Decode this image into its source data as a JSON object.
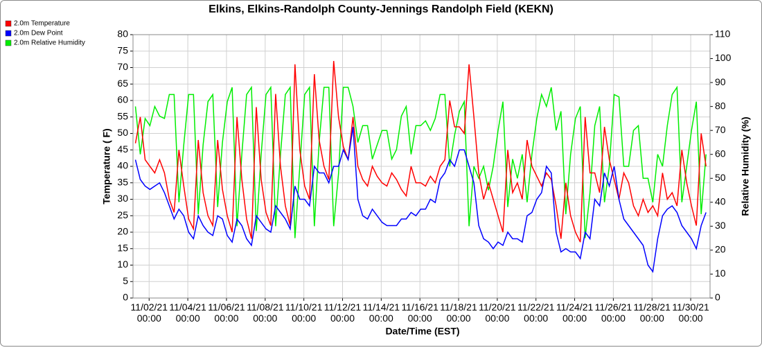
{
  "chart_data": {
    "type": "line",
    "title": "Elkins, Elkins-Randolph County-Jennings Randolph Field (KEKN)",
    "x_label": "Date/Time (EST)",
    "y_label": "Temperature ( F)",
    "y2_label": "Relative Humidity (%)",
    "x": [
      "11/01/21 07:00",
      "11/01/21 13:00",
      "11/01/21 19:00",
      "11/02/21 01:00",
      "11/02/21 07:00",
      "11/02/21 13:00",
      "11/02/21 19:00",
      "11/03/21 01:00",
      "11/03/21 07:00",
      "11/03/21 13:00",
      "11/03/21 19:00",
      "11/04/21 01:00",
      "11/04/21 07:00",
      "11/04/21 13:00",
      "11/04/21 19:00",
      "11/05/21 01:00",
      "11/05/21 07:00",
      "11/05/21 13:00",
      "11/05/21 19:00",
      "11/06/21 01:00",
      "11/06/21 07:00",
      "11/06/21 13:00",
      "11/06/21 19:00",
      "11/07/21 01:00",
      "11/07/21 07:00",
      "11/07/21 13:00",
      "11/07/21 19:00",
      "11/08/21 01:00",
      "11/08/21 07:00",
      "11/08/21 13:00",
      "11/08/21 19:00",
      "11/09/21 01:00",
      "11/09/21 07:00",
      "11/09/21 13:00",
      "11/09/21 19:00",
      "11/10/21 01:00",
      "11/10/21 07:00",
      "11/10/21 13:00",
      "11/10/21 19:00",
      "11/11/21 01:00",
      "11/11/21 07:00",
      "11/11/21 13:00",
      "11/11/21 19:00",
      "11/12/21 01:00",
      "11/12/21 07:00",
      "11/12/21 13:00",
      "11/12/21 19:00",
      "11/13/21 01:00",
      "11/13/21 07:00",
      "11/13/21 13:00",
      "11/13/21 19:00",
      "11/14/21 01:00",
      "11/14/21 07:00",
      "11/14/21 13:00",
      "11/14/21 19:00",
      "11/15/21 01:00",
      "11/15/21 07:00",
      "11/15/21 13:00",
      "11/15/21 19:00",
      "11/16/21 01:00",
      "11/16/21 07:00",
      "11/16/21 13:00",
      "11/16/21 19:00",
      "11/17/21 01:00",
      "11/17/21 07:00",
      "11/17/21 13:00",
      "11/17/21 19:00",
      "11/18/21 01:00",
      "11/18/21 07:00",
      "11/18/21 13:00",
      "11/18/21 19:00",
      "11/19/21 01:00",
      "11/19/21 07:00",
      "11/19/21 13:00",
      "11/19/21 19:00",
      "11/20/21 01:00",
      "11/20/21 07:00",
      "11/20/21 13:00",
      "11/20/21 19:00",
      "11/21/21 01:00",
      "11/21/21 07:00",
      "11/21/21 13:00",
      "11/21/21 19:00",
      "11/22/21 01:00",
      "11/22/21 07:00",
      "11/22/21 13:00",
      "11/22/21 19:00",
      "11/23/21 01:00",
      "11/23/21 07:00",
      "11/23/21 13:00",
      "11/23/21 19:00",
      "11/24/21 01:00",
      "11/24/21 07:00",
      "11/24/21 13:00",
      "11/24/21 19:00",
      "11/25/21 01:00",
      "11/25/21 07:00",
      "11/25/21 13:00",
      "11/25/21 19:00",
      "11/26/21 01:00",
      "11/26/21 07:00",
      "11/26/21 13:00",
      "11/26/21 19:00",
      "11/27/21 01:00",
      "11/27/21 07:00",
      "11/27/21 13:00",
      "11/27/21 19:00",
      "11/28/21 01:00",
      "11/28/21 07:00",
      "11/28/21 13:00",
      "11/28/21 19:00",
      "11/29/21 01:00",
      "11/29/21 07:00",
      "11/29/21 13:00",
      "11/29/21 19:00",
      "11/30/21 01:00",
      "11/30/21 07:00",
      "11/30/21 13:00",
      "11/30/21 19:00"
    ],
    "series": [
      {
        "name": "2.0m Temperature",
        "color": "#ff0000",
        "axis": "y",
        "values": [
          47,
          55,
          42,
          40,
          38,
          42,
          38,
          30,
          26,
          45,
          34,
          24,
          21,
          48,
          32,
          25,
          22,
          48,
          33,
          25,
          20,
          55,
          36,
          24,
          18,
          58,
          36,
          26,
          22,
          62,
          40,
          28,
          22,
          71,
          45,
          34,
          30,
          68,
          48,
          40,
          36,
          72,
          55,
          46,
          42,
          55,
          40,
          36,
          34,
          40,
          37,
          35,
          34,
          38,
          36,
          33,
          31,
          40,
          35,
          35,
          34,
          37,
          35,
          40,
          42,
          60,
          52,
          52,
          50,
          71,
          55,
          38,
          30,
          35,
          30,
          25,
          20,
          45,
          32,
          35,
          30,
          48,
          40,
          37,
          34,
          38,
          36,
          28,
          18,
          35,
          25,
          20,
          17,
          55,
          38,
          38,
          32,
          52,
          42,
          36,
          30,
          38,
          35,
          28,
          25,
          30,
          26,
          28,
          25,
          38,
          30,
          32,
          28,
          45,
          35,
          28,
          22,
          50,
          40
        ]
      },
      {
        "name": "2.0m Dew Point",
        "color": "#0000ff",
        "axis": "y",
        "values": [
          42,
          36,
          34,
          33,
          34,
          35,
          32,
          28,
          24,
          27,
          25,
          20,
          18,
          25,
          22,
          20,
          19,
          25,
          24,
          19,
          17,
          24,
          22,
          18,
          16,
          25,
          23,
          21,
          20,
          28,
          26,
          24,
          21,
          34,
          30,
          30,
          28,
          40,
          38,
          38,
          35,
          40,
          40,
          45,
          42,
          52,
          30,
          25,
          24,
          27,
          25,
          23,
          22,
          22,
          22,
          24,
          24,
          26,
          25,
          27,
          27,
          30,
          29,
          36,
          38,
          42,
          40,
          45,
          45,
          40,
          35,
          22,
          18,
          17,
          15,
          17,
          16,
          20,
          18,
          18,
          17,
          25,
          26,
          30,
          32,
          40,
          38,
          20,
          14,
          15,
          14,
          14,
          12,
          20,
          18,
          30,
          28,
          38,
          34,
          40,
          30,
          24,
          22,
          20,
          18,
          16,
          10,
          8,
          18,
          25,
          27,
          28,
          26,
          22,
          20,
          18,
          15,
          22,
          26
        ]
      },
      {
        "name": "2.0m Relative Humidity",
        "color": "#00ee00",
        "axis": "y2",
        "values": [
          80,
          60,
          75,
          72,
          80,
          76,
          75,
          85,
          85,
          40,
          64,
          85,
          85,
          35,
          64,
          82,
          85,
          38,
          65,
          82,
          88,
          30,
          60,
          85,
          88,
          28,
          60,
          85,
          88,
          30,
          60,
          85,
          88,
          25,
          55,
          85,
          88,
          30,
          65,
          88,
          88,
          30,
          52,
          88,
          88,
          80,
          65,
          72,
          72,
          58,
          64,
          70,
          70,
          58,
          62,
          76,
          80,
          60,
          72,
          72,
          74,
          70,
          75,
          85,
          85,
          55,
          68,
          78,
          82,
          30,
          55,
          50,
          55,
          45,
          55,
          70,
          82,
          38,
          58,
          50,
          60,
          40,
          60,
          75,
          85,
          80,
          88,
          70,
          78,
          35,
          60,
          75,
          80,
          25,
          44,
          72,
          80,
          40,
          55,
          85,
          84,
          55,
          55,
          70,
          72,
          50,
          50,
          40,
          60,
          55,
          72,
          85,
          88,
          40,
          55,
          70,
          82,
          35,
          60
        ]
      }
    ],
    "xlim": [
      "11/01/21 04:00",
      "12/01/21 00:00"
    ],
    "xticks": [
      "11/02/21 00:00",
      "11/04/21 00:00",
      "11/06/21 00:00",
      "11/08/21 00:00",
      "11/10/21 00:00",
      "11/12/21 00:00",
      "11/14/21 00:00",
      "11/16/21 00:00",
      "11/18/21 00:00",
      "11/20/21 00:00",
      "11/22/21 00:00",
      "11/24/21 00:00",
      "11/26/21 00:00",
      "11/28/21 00:00",
      "11/30/21 00:00"
    ],
    "ylim": [
      0,
      80
    ],
    "yticks": [
      0,
      5,
      10,
      15,
      20,
      25,
      30,
      35,
      40,
      45,
      50,
      55,
      60,
      65,
      70,
      75,
      80
    ],
    "y2lim": [
      0,
      110
    ],
    "y2ticks": [
      0,
      10,
      20,
      30,
      40,
      50,
      60,
      70,
      80,
      90,
      100,
      110
    ],
    "grid": true,
    "legend": "top-left"
  }
}
